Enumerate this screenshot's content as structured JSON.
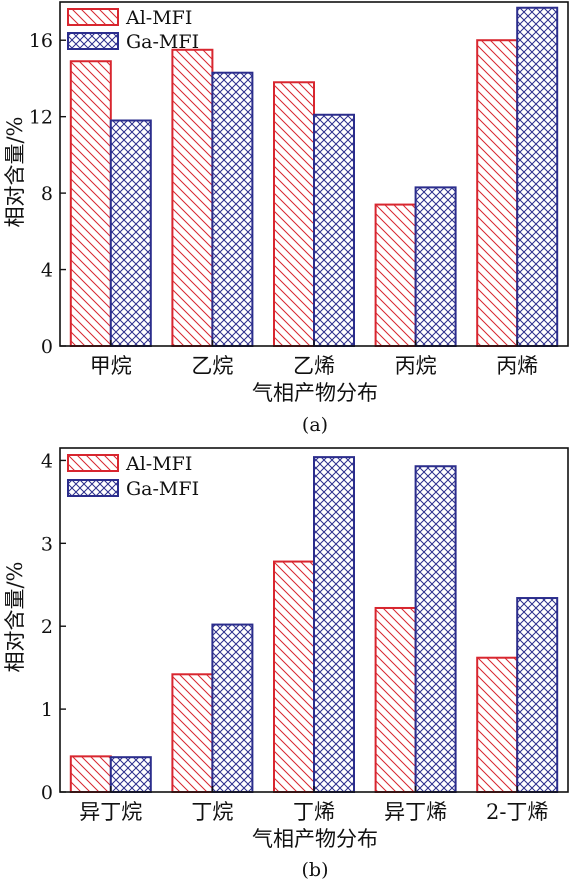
{
  "chart_data": [
    {
      "type": "bar",
      "caption": "(a)",
      "categories": [
        "甲烷",
        "乙烷",
        "乙烯",
        "丙烷",
        "丙烯"
      ],
      "series": [
        {
          "name": "Al-MFI",
          "values": [
            14.9,
            15.5,
            13.8,
            7.4,
            16.0
          ]
        },
        {
          "name": "Ga-MFI",
          "values": [
            11.8,
            14.3,
            12.1,
            8.3,
            17.7
          ]
        }
      ],
      "xlabel": "气相产物分布",
      "ylabel": "相对含量/%",
      "ylim": [
        0,
        18
      ],
      "yticks": [
        0,
        4,
        8,
        12,
        16
      ],
      "legend_position": "top-left",
      "grid": false
    },
    {
      "type": "bar",
      "caption": "(b)",
      "categories": [
        "异丁烷",
        "丁烷",
        "丁烯",
        "异丁烯",
        "2-丁烯"
      ],
      "series": [
        {
          "name": "Al-MFI",
          "values": [
            0.43,
            1.42,
            2.78,
            2.22,
            1.62
          ]
        },
        {
          "name": "Ga-MFI",
          "values": [
            0.42,
            2.02,
            4.04,
            3.93,
            2.34
          ]
        }
      ],
      "xlabel": "气相产物分布",
      "ylabel": "相对含量/%",
      "ylim": [
        0,
        4.15
      ],
      "yticks": [
        0,
        1,
        2,
        3,
        4
      ],
      "legend_position": "top-left",
      "grid": false
    }
  ],
  "colors": {
    "al_mfi": "#d8262f",
    "ga_mfi": "#2b2d8c",
    "axis": "#111111"
  }
}
